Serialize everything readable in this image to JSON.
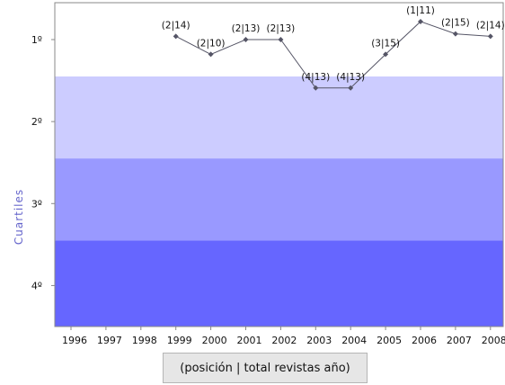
{
  "chart_data": {
    "type": "line",
    "title": "",
    "xlabel": "",
    "ylabel": "Cuartiles",
    "categories": [
      "1996",
      "1997",
      "1998",
      "1999",
      "2000",
      "2001",
      "2002",
      "2003",
      "2004",
      "2005",
      "2006",
      "2007",
      "2008"
    ],
    "y_ticks": [
      "1º",
      "2º",
      "3º",
      "4º"
    ],
    "ylim_inverted": [
      0.55,
      4.5
    ],
    "quartile_bands": [
      {
        "from": 0.55,
        "to": 1.45,
        "color": "#ffffff"
      },
      {
        "from": 1.45,
        "to": 2.45,
        "color": "#ccccff"
      },
      {
        "from": 2.45,
        "to": 3.45,
        "color": "#9999ff"
      },
      {
        "from": 3.45,
        "to": 4.5,
        "color": "#6666ff"
      }
    ],
    "series": [
      {
        "color": "#555566",
        "points": [
          {
            "x": "1999",
            "y": 0.96,
            "label": "(2|14)"
          },
          {
            "x": "2000",
            "y": 1.18,
            "label": "(2|10)"
          },
          {
            "x": "2001",
            "y": 1.0,
            "label": "(2|13)"
          },
          {
            "x": "2002",
            "y": 1.0,
            "label": "(2|13)"
          },
          {
            "x": "2003",
            "y": 1.59,
            "label": "(4|13)"
          },
          {
            "x": "2004",
            "y": 1.59,
            "label": "(4|13)"
          },
          {
            "x": "2005",
            "y": 1.18,
            "label": "(3|15)"
          },
          {
            "x": "2006",
            "y": 0.78,
            "label": "(1|11)"
          },
          {
            "x": "2007",
            "y": 0.93,
            "label": "(2|15)"
          },
          {
            "x": "2008",
            "y": 0.96,
            "label": "(2|14)"
          }
        ]
      }
    ],
    "legend_text": "(posición | total revistas año)",
    "grid": false
  }
}
